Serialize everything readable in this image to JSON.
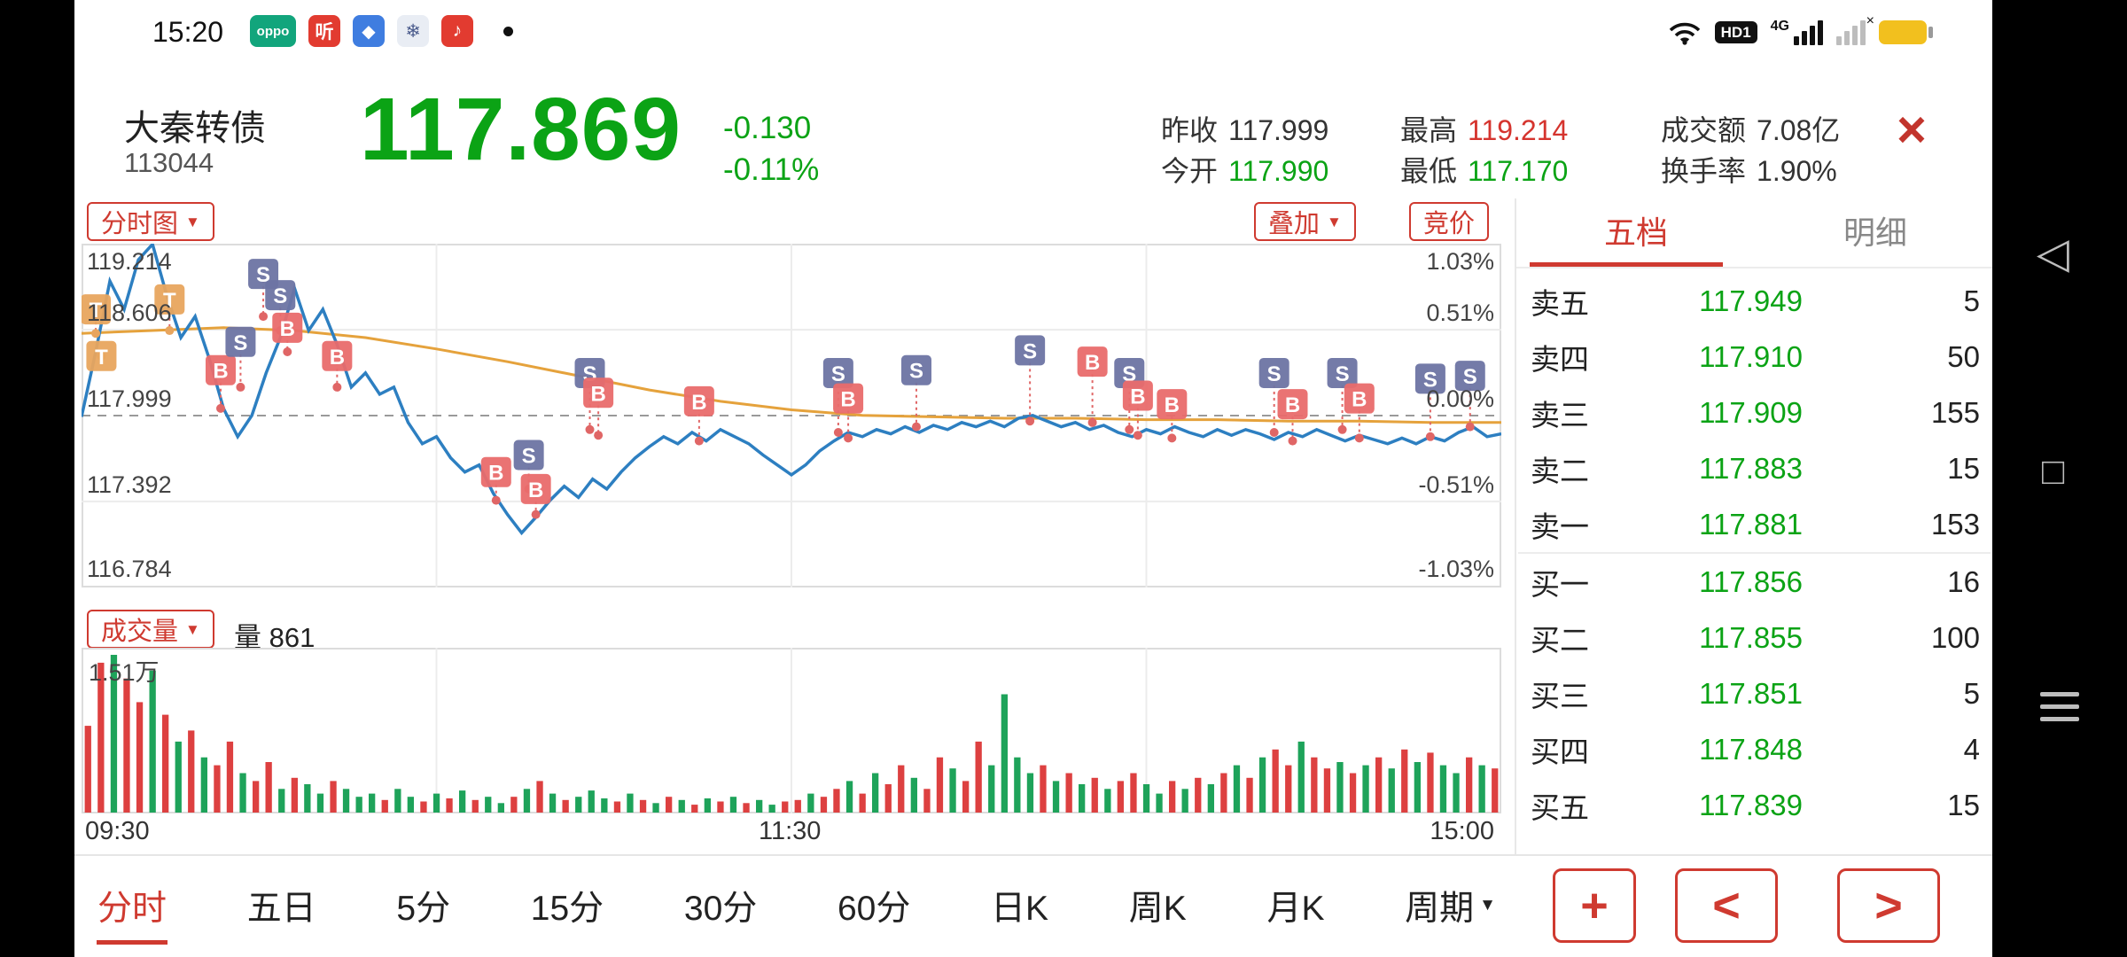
{
  "colors": {
    "up_red": "#d5342e",
    "down_green": "#0ba315",
    "accent_red": "#cf3a30",
    "price_line": "#2d7fc1",
    "avg_line": "#e5a23c",
    "buy_marker": "#e96b6b",
    "sell_marker": "#6d74a3",
    "t_marker": "#e8a55e",
    "vol_up": "#dd4040",
    "vol_down": "#1ea35a"
  },
  "status_bar": {
    "time": "15:20",
    "app_badges": [
      {
        "name": "oppo-badge",
        "glyph": "oppo"
      },
      {
        "name": "listen-app",
        "glyph": "听"
      },
      {
        "name": "netdisk-app",
        "glyph": "◆"
      },
      {
        "name": "weather-app",
        "glyph": "❄"
      },
      {
        "name": "music-app",
        "glyph": "♪"
      }
    ],
    "hd_label": "HD1",
    "net_label": "4G"
  },
  "header": {
    "stock_name": "大秦转债",
    "stock_code": "113044",
    "price": "117.869",
    "change": "-0.130",
    "change_pct": "-0.11%",
    "stats": [
      {
        "label": "昨收",
        "value": "117.999",
        "tone": "dark"
      },
      {
        "label": "今开",
        "value": "117.990",
        "tone": "green"
      },
      {
        "label": "最高",
        "value": "119.214",
        "tone": "red"
      },
      {
        "label": "最低",
        "value": "117.170",
        "tone": "green"
      },
      {
        "label": "成交额",
        "value": "7.08亿",
        "tone": "dark"
      },
      {
        "label": "换手率",
        "value": "1.90%",
        "tone": "dark"
      }
    ],
    "close_glyph": "×"
  },
  "chart_controls": {
    "period": "分时图",
    "overlay": "叠加",
    "auction": "竞价",
    "volume_selector": "成交量",
    "volume_label": "量 861"
  },
  "chart_data": {
    "type": "line",
    "title": "分时图",
    "prev_close": 117.999,
    "open": 117.99,
    "high": 119.214,
    "low": 117.17,
    "last": 117.869,
    "x_labels": [
      "09:30",
      "11:30",
      "15:00"
    ],
    "y_axis_price": [
      "119.214",
      "118.606",
      "117.999",
      "117.392",
      "116.784"
    ],
    "y_axis_pct": [
      "1.03%",
      "0.51%",
      "0.00%",
      "-0.51%",
      "-1.03%"
    ],
    "y_range": [
      116.784,
      119.214
    ],
    "grid": "quarter-verticals, dashed prev-close",
    "series": [
      {
        "name": "price",
        "color": "#2d7fc1",
        "values": [
          117.99,
          118.45,
          118.95,
          118.75,
          119.1,
          119.21,
          118.85,
          118.55,
          118.7,
          118.4,
          118.05,
          117.85,
          118.0,
          118.3,
          118.55,
          118.9,
          118.6,
          118.75,
          118.5,
          118.2,
          118.3,
          118.15,
          118.2,
          117.95,
          117.8,
          117.85,
          117.7,
          117.6,
          117.65,
          117.45,
          117.3,
          117.17,
          117.28,
          117.4,
          117.5,
          117.42,
          117.55,
          117.48,
          117.6,
          117.7,
          117.78,
          117.85,
          117.8,
          117.88,
          117.82,
          117.9,
          117.85,
          117.8,
          117.72,
          117.65,
          117.58,
          117.65,
          117.75,
          117.82,
          117.88,
          117.85,
          117.9,
          117.87,
          117.92,
          117.88,
          117.93,
          117.9,
          117.95,
          117.92,
          117.96,
          117.92,
          117.98,
          118.0,
          117.96,
          117.92,
          117.95,
          117.9,
          117.93,
          117.88,
          117.85,
          117.9,
          117.87,
          117.92,
          117.88,
          117.85,
          117.9,
          117.86,
          117.9,
          117.87,
          117.83,
          117.88,
          117.85,
          117.9,
          117.86,
          117.82,
          117.86,
          117.83,
          117.8,
          117.84,
          117.8,
          117.85,
          117.82,
          117.88,
          117.92,
          117.85,
          117.87
        ]
      },
      {
        "name": "avg",
        "color": "#e5a23c",
        "values": [
          118.58,
          118.6,
          118.62,
          118.6,
          118.55,
          118.47,
          118.38,
          118.28,
          118.18,
          118.1,
          118.04,
          118.0,
          117.99,
          117.98,
          117.98,
          117.97,
          117.97,
          117.96,
          117.96,
          117.95,
          117.95
        ]
      }
    ],
    "markers": [
      {
        "t": 0.01,
        "p": 118.75,
        "d": 118.58,
        "k": "T"
      },
      {
        "t": 0.014,
        "p": 118.42,
        "d": 118.42,
        "k": "T"
      },
      {
        "t": 0.062,
        "p": 118.82,
        "d": 118.6,
        "k": "T"
      },
      {
        "t": 0.098,
        "p": 118.32,
        "d": 118.05,
        "k": "B"
      },
      {
        "t": 0.112,
        "p": 118.52,
        "d": 118.2,
        "k": "S"
      },
      {
        "t": 0.128,
        "p": 119.0,
        "d": 118.7,
        "k": "S"
      },
      {
        "t": 0.14,
        "p": 118.85,
        "d": 118.6,
        "k": "S"
      },
      {
        "t": 0.145,
        "p": 118.62,
        "d": 118.45,
        "k": "B"
      },
      {
        "t": 0.18,
        "p": 118.42,
        "d": 118.2,
        "k": "B"
      },
      {
        "t": 0.292,
        "p": 117.6,
        "d": 117.4,
        "k": "B"
      },
      {
        "t": 0.315,
        "p": 117.72,
        "d": 117.48,
        "k": "S"
      },
      {
        "t": 0.32,
        "p": 117.48,
        "d": 117.3,
        "k": "B"
      },
      {
        "t": 0.358,
        "p": 118.3,
        "d": 117.9,
        "k": "S"
      },
      {
        "t": 0.364,
        "p": 118.16,
        "d": 117.86,
        "k": "B"
      },
      {
        "t": 0.435,
        "p": 118.1,
        "d": 117.82,
        "k": "B"
      },
      {
        "t": 0.533,
        "p": 118.3,
        "d": 117.88,
        "k": "S"
      },
      {
        "t": 0.54,
        "p": 118.12,
        "d": 117.84,
        "k": "B"
      },
      {
        "t": 0.588,
        "p": 118.32,
        "d": 117.92,
        "k": "S"
      },
      {
        "t": 0.668,
        "p": 118.46,
        "d": 117.96,
        "k": "S"
      },
      {
        "t": 0.712,
        "p": 118.38,
        "d": 117.95,
        "k": "B"
      },
      {
        "t": 0.738,
        "p": 118.3,
        "d": 117.9,
        "k": "S"
      },
      {
        "t": 0.744,
        "p": 118.14,
        "d": 117.86,
        "k": "B"
      },
      {
        "t": 0.768,
        "p": 118.08,
        "d": 117.84,
        "k": "B"
      },
      {
        "t": 0.84,
        "p": 118.3,
        "d": 117.88,
        "k": "S"
      },
      {
        "t": 0.853,
        "p": 118.08,
        "d": 117.82,
        "k": "B"
      },
      {
        "t": 0.888,
        "p": 118.3,
        "d": 117.9,
        "k": "S"
      },
      {
        "t": 0.9,
        "p": 118.12,
        "d": 117.84,
        "k": "B"
      },
      {
        "t": 0.95,
        "p": 118.26,
        "d": 117.85,
        "k": "S"
      },
      {
        "t": 0.978,
        "p": 118.28,
        "d": 117.92,
        "k": "S"
      }
    ],
    "volume": {
      "current": 861,
      "max_label": "1.51万",
      "heights": [
        0.55,
        0.95,
        1.0,
        0.85,
        0.7,
        0.9,
        0.62,
        0.45,
        0.52,
        0.35,
        0.3,
        0.45,
        0.25,
        0.2,
        0.32,
        0.15,
        0.22,
        0.18,
        0.12,
        0.2,
        0.15,
        0.1,
        0.12,
        0.08,
        0.15,
        0.1,
        0.07,
        0.12,
        0.09,
        0.14,
        0.08,
        0.1,
        0.06,
        0.1,
        0.15,
        0.2,
        0.12,
        0.08,
        0.1,
        0.14,
        0.09,
        0.07,
        0.12,
        0.08,
        0.06,
        0.1,
        0.08,
        0.05,
        0.09,
        0.07,
        0.1,
        0.06,
        0.08,
        0.05,
        0.07,
        0.08,
        0.12,
        0.1,
        0.15,
        0.2,
        0.12,
        0.25,
        0.18,
        0.3,
        0.22,
        0.15,
        0.35,
        0.28,
        0.2,
        0.45,
        0.3,
        0.75,
        0.35,
        0.25,
        0.3,
        0.2,
        0.25,
        0.18,
        0.22,
        0.15,
        0.2,
        0.25,
        0.18,
        0.12,
        0.2,
        0.15,
        0.22,
        0.18,
        0.25,
        0.3,
        0.22,
        0.35,
        0.4,
        0.3,
        0.45,
        0.35,
        0.28,
        0.32,
        0.25,
        0.3,
        0.35,
        0.28,
        0.4,
        0.32,
        0.38,
        0.3,
        0.25,
        0.35,
        0.3,
        0.28
      ],
      "colors": "rrgrrgrgrgrrgrrgrggrgggrggrgrgrggrgrgrgggrgrgrgrgrgrggrrgrrgrgrrgrrgrrggggrgrgrgrrggrgrgrgrgrrgrrgrgrgrgrggrgr"
    }
  },
  "order_book": {
    "tabs": [
      {
        "label": "五档",
        "active": true
      },
      {
        "label": "明细",
        "active": false
      }
    ],
    "rows": [
      {
        "label": "卖五",
        "price": "117.949",
        "qty": "5"
      },
      {
        "label": "卖四",
        "price": "117.910",
        "qty": "50"
      },
      {
        "label": "卖三",
        "price": "117.909",
        "qty": "155"
      },
      {
        "label": "卖二",
        "price": "117.883",
        "qty": "15"
      },
      {
        "label": "卖一",
        "price": "117.881",
        "qty": "153"
      },
      {
        "label": "买一",
        "price": "117.856",
        "qty": "16"
      },
      {
        "label": "买二",
        "price": "117.855",
        "qty": "100"
      },
      {
        "label": "买三",
        "price": "117.851",
        "qty": "5"
      },
      {
        "label": "买四",
        "price": "117.848",
        "qty": "4"
      },
      {
        "label": "买五",
        "price": "117.839",
        "qty": "15"
      }
    ]
  },
  "panel_buttons": {
    "add": "+",
    "prev": "<",
    "next": ">"
  },
  "bottom_nav": {
    "items": [
      "分时",
      "五日",
      "5分",
      "15分",
      "30分",
      "60分",
      "日K",
      "周K",
      "月K",
      "周期"
    ],
    "active": "分时"
  }
}
